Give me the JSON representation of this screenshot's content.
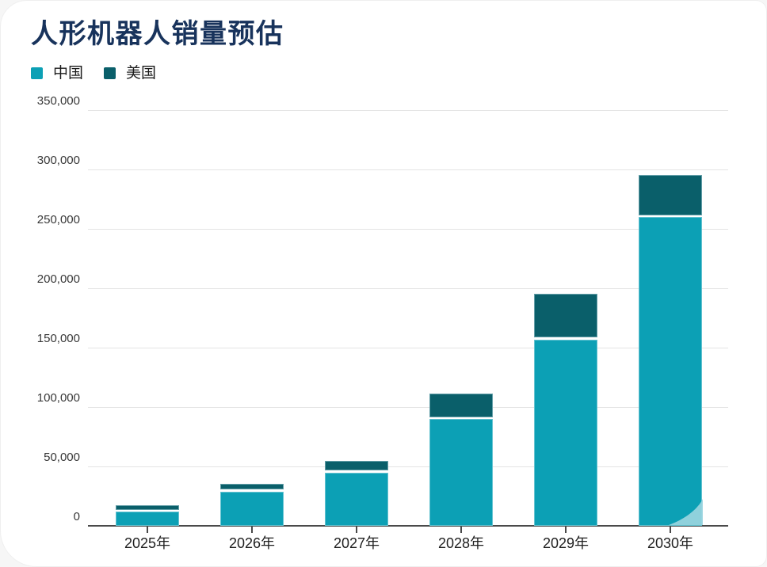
{
  "header": {
    "title": "人形机器人销量预估"
  },
  "legend": [
    {
      "label": "中国",
      "color": "#0ca0b5"
    },
    {
      "label": "美国",
      "color": "#0a5f6a"
    }
  ],
  "chart_data": {
    "type": "bar",
    "stacked": true,
    "title": "人形机器人销量预估",
    "categories": [
      "2025年",
      "2026年",
      "2027年",
      "2028年",
      "2029年",
      "2030年"
    ],
    "series": [
      {
        "name": "中国",
        "color": "#0ca0b5",
        "values": [
          12000,
          29000,
          45000,
          90000,
          157000,
          260000
        ]
      },
      {
        "name": "美国",
        "color": "#0a5f6a",
        "values": [
          4000,
          5000,
          8000,
          20000,
          37000,
          34000
        ]
      }
    ],
    "stack_totals": [
      16000,
      34000,
      53000,
      110000,
      194000,
      294000
    ],
    "xlabel": "",
    "ylabel": "",
    "ylim": [
      0,
      350000
    ],
    "ytick_step": 50000,
    "ytick_labels": [
      "0",
      "50,000",
      "100,000",
      "150,000",
      "200,000",
      "250,000",
      "300,000",
      "350,000"
    ],
    "grid": true,
    "legend_position": "top-left"
  },
  "colors": {
    "title": "#18335c",
    "grid": "#e4e4e4",
    "axis": "#4a4a4a",
    "segment_separator": "#ffffff",
    "corner_curl_overlay": "#9bd5e0"
  }
}
